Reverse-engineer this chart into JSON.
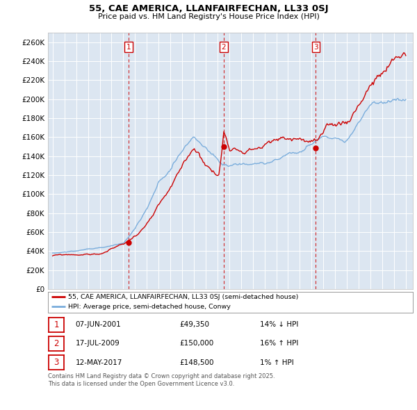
{
  "title": "55, CAE AMERICA, LLANFAIRFECHAN, LL33 0SJ",
  "subtitle": "Price paid vs. HM Land Registry's House Price Index (HPI)",
  "ylim": [
    0,
    270000
  ],
  "yticks": [
    0,
    20000,
    40000,
    60000,
    80000,
    100000,
    120000,
    140000,
    160000,
    180000,
    200000,
    220000,
    240000,
    260000
  ],
  "sale_color": "#cc0000",
  "hpi_color": "#7aaddc",
  "plot_bg_color": "#dce6f1",
  "sales": [
    {
      "date_year": 2001.44,
      "price": 49350,
      "label": "1"
    },
    {
      "date_year": 2009.54,
      "price": 150000,
      "label": "2"
    },
    {
      "date_year": 2017.36,
      "price": 148500,
      "label": "3"
    }
  ],
  "legend_sale_label": "55, CAE AMERICA, LLANFAIRFECHAN, LL33 0SJ (semi-detached house)",
  "legend_hpi_label": "HPI: Average price, semi-detached house, Conwy",
  "table_rows": [
    {
      "num": "1",
      "date": "07-JUN-2001",
      "price": "£49,350",
      "hpi": "14% ↓ HPI"
    },
    {
      "num": "2",
      "date": "17-JUL-2009",
      "price": "£150,000",
      "hpi": "16% ↑ HPI"
    },
    {
      "num": "3",
      "date": "12-MAY-2017",
      "price": "£148,500",
      "hpi": "1% ↑ HPI"
    }
  ],
  "footnote": "Contains HM Land Registry data © Crown copyright and database right 2025.\nThis data is licensed under the Open Government Licence v3.0."
}
